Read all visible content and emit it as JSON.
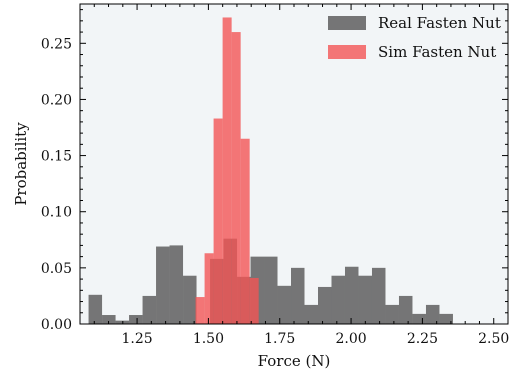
{
  "chart_data": {
    "type": "histogram",
    "xlabel": "Force (N)",
    "ylabel": "Probability",
    "xlim": [
      1.05,
      2.55
    ],
    "ylim": [
      0.0,
      0.285
    ],
    "x_ticks": [
      1.25,
      1.5,
      1.75,
      2.0,
      2.25,
      2.5
    ],
    "x_tick_labels": [
      "1.25",
      "1.50",
      "1.75",
      "2.00",
      "2.25",
      "2.50"
    ],
    "y_ticks": [
      0.0,
      0.05,
      0.1,
      0.15,
      0.2,
      0.25
    ],
    "y_tick_labels": [
      "0.00",
      "0.05",
      "0.10",
      "0.15",
      "0.20",
      "0.25"
    ],
    "background_color": "#f2f5f7",
    "legend_position": "top-right",
    "series": [
      {
        "name": "Real Fasten Nut",
        "color": "#555555",
        "opacity": 0.8,
        "bin_start": 1.08,
        "bin_width": 0.0473,
        "values": [
          0.026,
          0.008,
          0.003,
          0.008,
          0.025,
          0.069,
          0.07,
          0.043,
          0.0,
          0.058,
          0.076,
          0.042,
          0.06,
          0.06,
          0.034,
          0.05,
          0.017,
          0.033,
          0.043,
          0.051,
          0.043,
          0.05,
          0.017,
          0.025,
          0.009,
          0.017,
          0.009
        ]
      },
      {
        "name": "Sim Fasten Nut",
        "color": "#f25555",
        "opacity": 0.8,
        "bin_start": 1.455,
        "bin_width": 0.0316,
        "values": [
          0.024,
          0.063,
          0.183,
          0.273,
          0.26,
          0.165,
          0.041
        ]
      }
    ]
  }
}
